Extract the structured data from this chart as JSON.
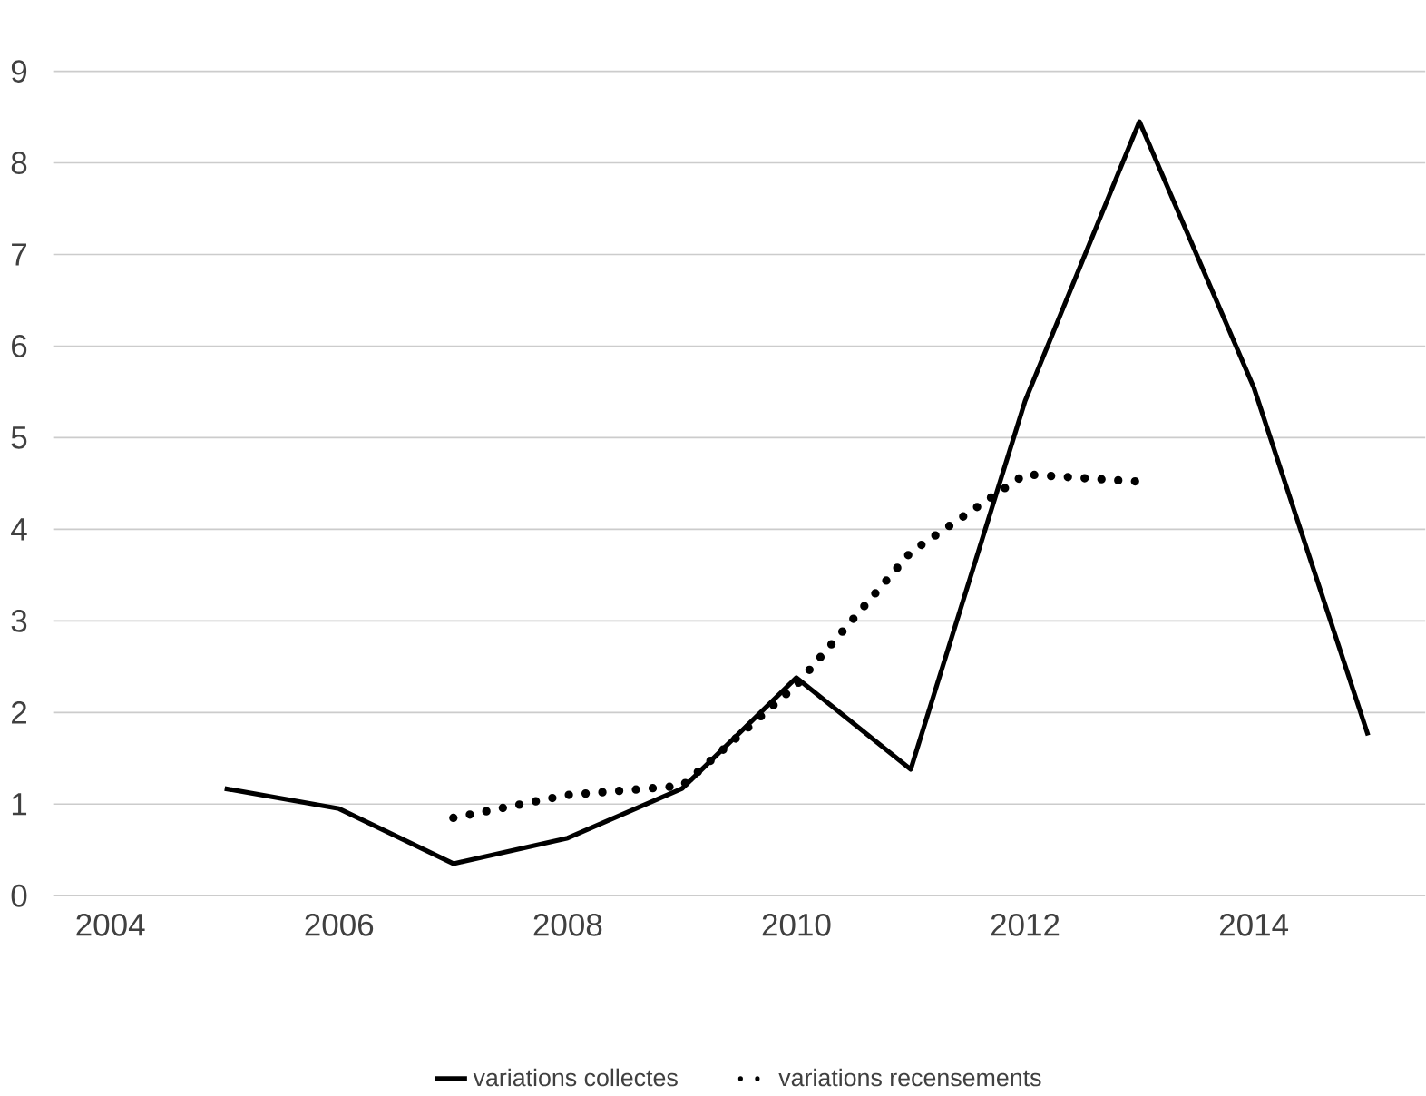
{
  "chart_data": {
    "type": "line",
    "xlim": [
      2003.5,
      2015.5
    ],
    "xticks": [
      2004,
      2006,
      2008,
      2010,
      2012,
      2014
    ],
    "ylim": [
      0,
      9
    ],
    "yticks": [
      0,
      1,
      2,
      3,
      4,
      5,
      6,
      7,
      8,
      9
    ],
    "grid": "y",
    "legend": "bottom",
    "series": [
      {
        "name": "variations collectes",
        "color": "#000000",
        "line_style": "solid",
        "x": [
          2005,
          2006,
          2007,
          2008,
          2009,
          2010,
          2011,
          2012,
          2013,
          2014,
          2015
        ],
        "values": [
          1.17,
          0.95,
          0.35,
          0.63,
          1.17,
          2.38,
          1.38,
          5.4,
          8.45,
          5.55,
          1.75
        ]
      },
      {
        "name": "variations recensements",
        "color": "#000000",
        "line_style": "dotted",
        "x": [
          2007,
          2008,
          2009,
          2010,
          2011,
          2012,
          2013
        ],
        "values": [
          0.85,
          1.1,
          1.2,
          2.3,
          3.75,
          4.6,
          4.52
        ]
      }
    ]
  }
}
